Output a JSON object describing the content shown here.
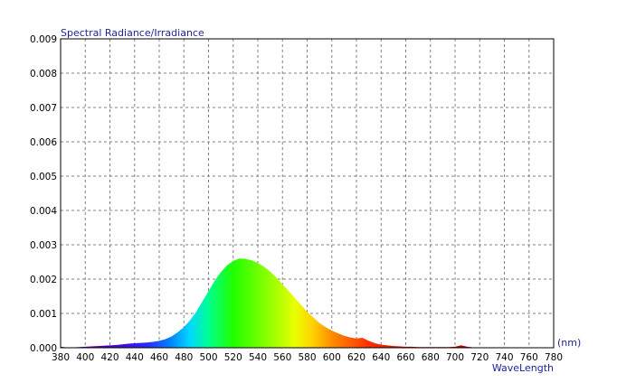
{
  "chart_data": {
    "type": "area",
    "title": "Spectral Radiance/Irradiance",
    "xlabel": "WaveLength",
    "xunit": "(nm)",
    "ylabel": "Spectral Radiance/Irradiance",
    "xlim": [
      380,
      780
    ],
    "ylim": [
      0,
      0.009
    ],
    "x_ticks": [
      380,
      400,
      420,
      440,
      460,
      480,
      500,
      520,
      540,
      560,
      580,
      600,
      620,
      640,
      660,
      680,
      700,
      720,
      740,
      760,
      780
    ],
    "y_ticks": [
      "0.000",
      "0.001",
      "0.002",
      "0.003",
      "0.004",
      "0.005",
      "0.006",
      "0.007",
      "0.008",
      "0.009"
    ],
    "grid": true,
    "fill": "spectral-rainbow",
    "colors": {
      "text": "#000000",
      "axis_title": "#1f1f99",
      "grid": "#808080",
      "frame": "#000000"
    },
    "series": [
      {
        "x": [
          380,
          385,
          390,
          395,
          400,
          405,
          410,
          415,
          420,
          425,
          430,
          435,
          440,
          445,
          450,
          455,
          460,
          465,
          470,
          475,
          480,
          485,
          490,
          495,
          500,
          505,
          510,
          515,
          520,
          525,
          530,
          535,
          540,
          545,
          550,
          555,
          560,
          565,
          570,
          575,
          580,
          585,
          590,
          595,
          600,
          605,
          610,
          615,
          620,
          625,
          630,
          635,
          640,
          645,
          650,
          655,
          660,
          665,
          670,
          675,
          680,
          685,
          690,
          695,
          700,
          705,
          710,
          715,
          720,
          725,
          730,
          735,
          740,
          745,
          750,
          755,
          760,
          765,
          770,
          775,
          780
        ],
        "y": [
          3e-05,
          1e-05,
          1e-05,
          2e-05,
          3e-05,
          4e-05,
          5e-05,
          6e-05,
          7e-05,
          8e-05,
          0.0001,
          0.00012,
          0.00013,
          0.00014,
          0.00015,
          0.00017,
          0.0002,
          0.00025,
          0.00033,
          0.00045,
          0.0006,
          0.0008,
          0.00105,
          0.00135,
          0.00165,
          0.00195,
          0.0022,
          0.0024,
          0.00253,
          0.0026,
          0.00259,
          0.00255,
          0.00247,
          0.00236,
          0.00222,
          0.00205,
          0.00185,
          0.00165,
          0.00145,
          0.00125,
          0.00105,
          0.00088,
          0.00072,
          0.0006,
          0.0005,
          0.00042,
          0.00035,
          0.0003,
          0.00027,
          0.00029,
          0.0002,
          0.00013,
          9e-05,
          7e-05,
          5e-05,
          4e-05,
          3e-05,
          3e-05,
          2e-05,
          2e-05,
          2e-05,
          2e-05,
          2e-05,
          2e-05,
          3e-05,
          7e-05,
          3e-05,
          1e-05,
          0,
          0,
          0,
          0,
          0,
          0,
          0,
          0,
          0,
          0,
          0,
          0,
          0
        ]
      }
    ]
  }
}
